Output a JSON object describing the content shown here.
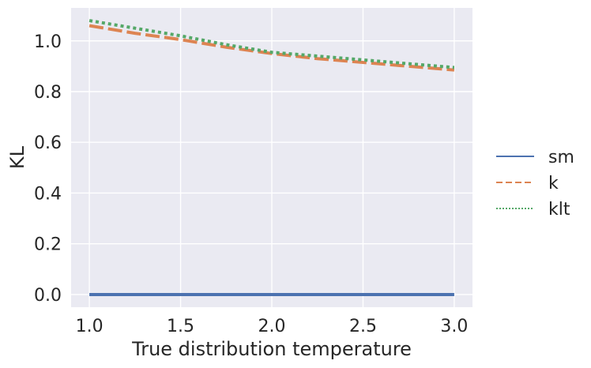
{
  "chart_data": {
    "type": "line",
    "title": "",
    "xlabel": "True distribution temperature",
    "ylabel": "KL",
    "xlim": [
      0.9,
      3.1
    ],
    "ylim": [
      -0.05,
      1.13
    ],
    "xticks": [
      1.0,
      1.5,
      2.0,
      2.5,
      3.0
    ],
    "xtick_labels": [
      "1.0",
      "1.5",
      "2.0",
      "2.5",
      "3.0"
    ],
    "yticks": [
      0.0,
      0.2,
      0.4,
      0.6,
      0.8,
      1.0
    ],
    "ytick_labels": [
      "0.0",
      "0.2",
      "0.4",
      "0.6",
      "0.8",
      "1.0"
    ],
    "grid": true,
    "legend_position": "right, outside",
    "x": [
      1.0,
      1.25,
      1.5,
      1.75,
      2.0,
      2.25,
      2.5,
      2.75,
      3.0
    ],
    "series": [
      {
        "name": "sm",
        "color": "#4c72b0",
        "dash": "solid",
        "values": [
          0.0,
          0.0,
          0.0,
          0.0,
          0.0,
          0.0,
          0.0,
          0.0,
          0.0
        ]
      },
      {
        "name": "k",
        "color": "#dd8452",
        "dash": "dashed",
        "values": [
          1.06,
          1.03,
          1.005,
          0.975,
          0.95,
          0.93,
          0.915,
          0.9,
          0.885
        ]
      },
      {
        "name": "klt",
        "color": "#55a868",
        "dash": "dotted",
        "values": [
          1.08,
          1.05,
          1.02,
          0.985,
          0.955,
          0.94,
          0.925,
          0.91,
          0.895
        ]
      }
    ]
  }
}
